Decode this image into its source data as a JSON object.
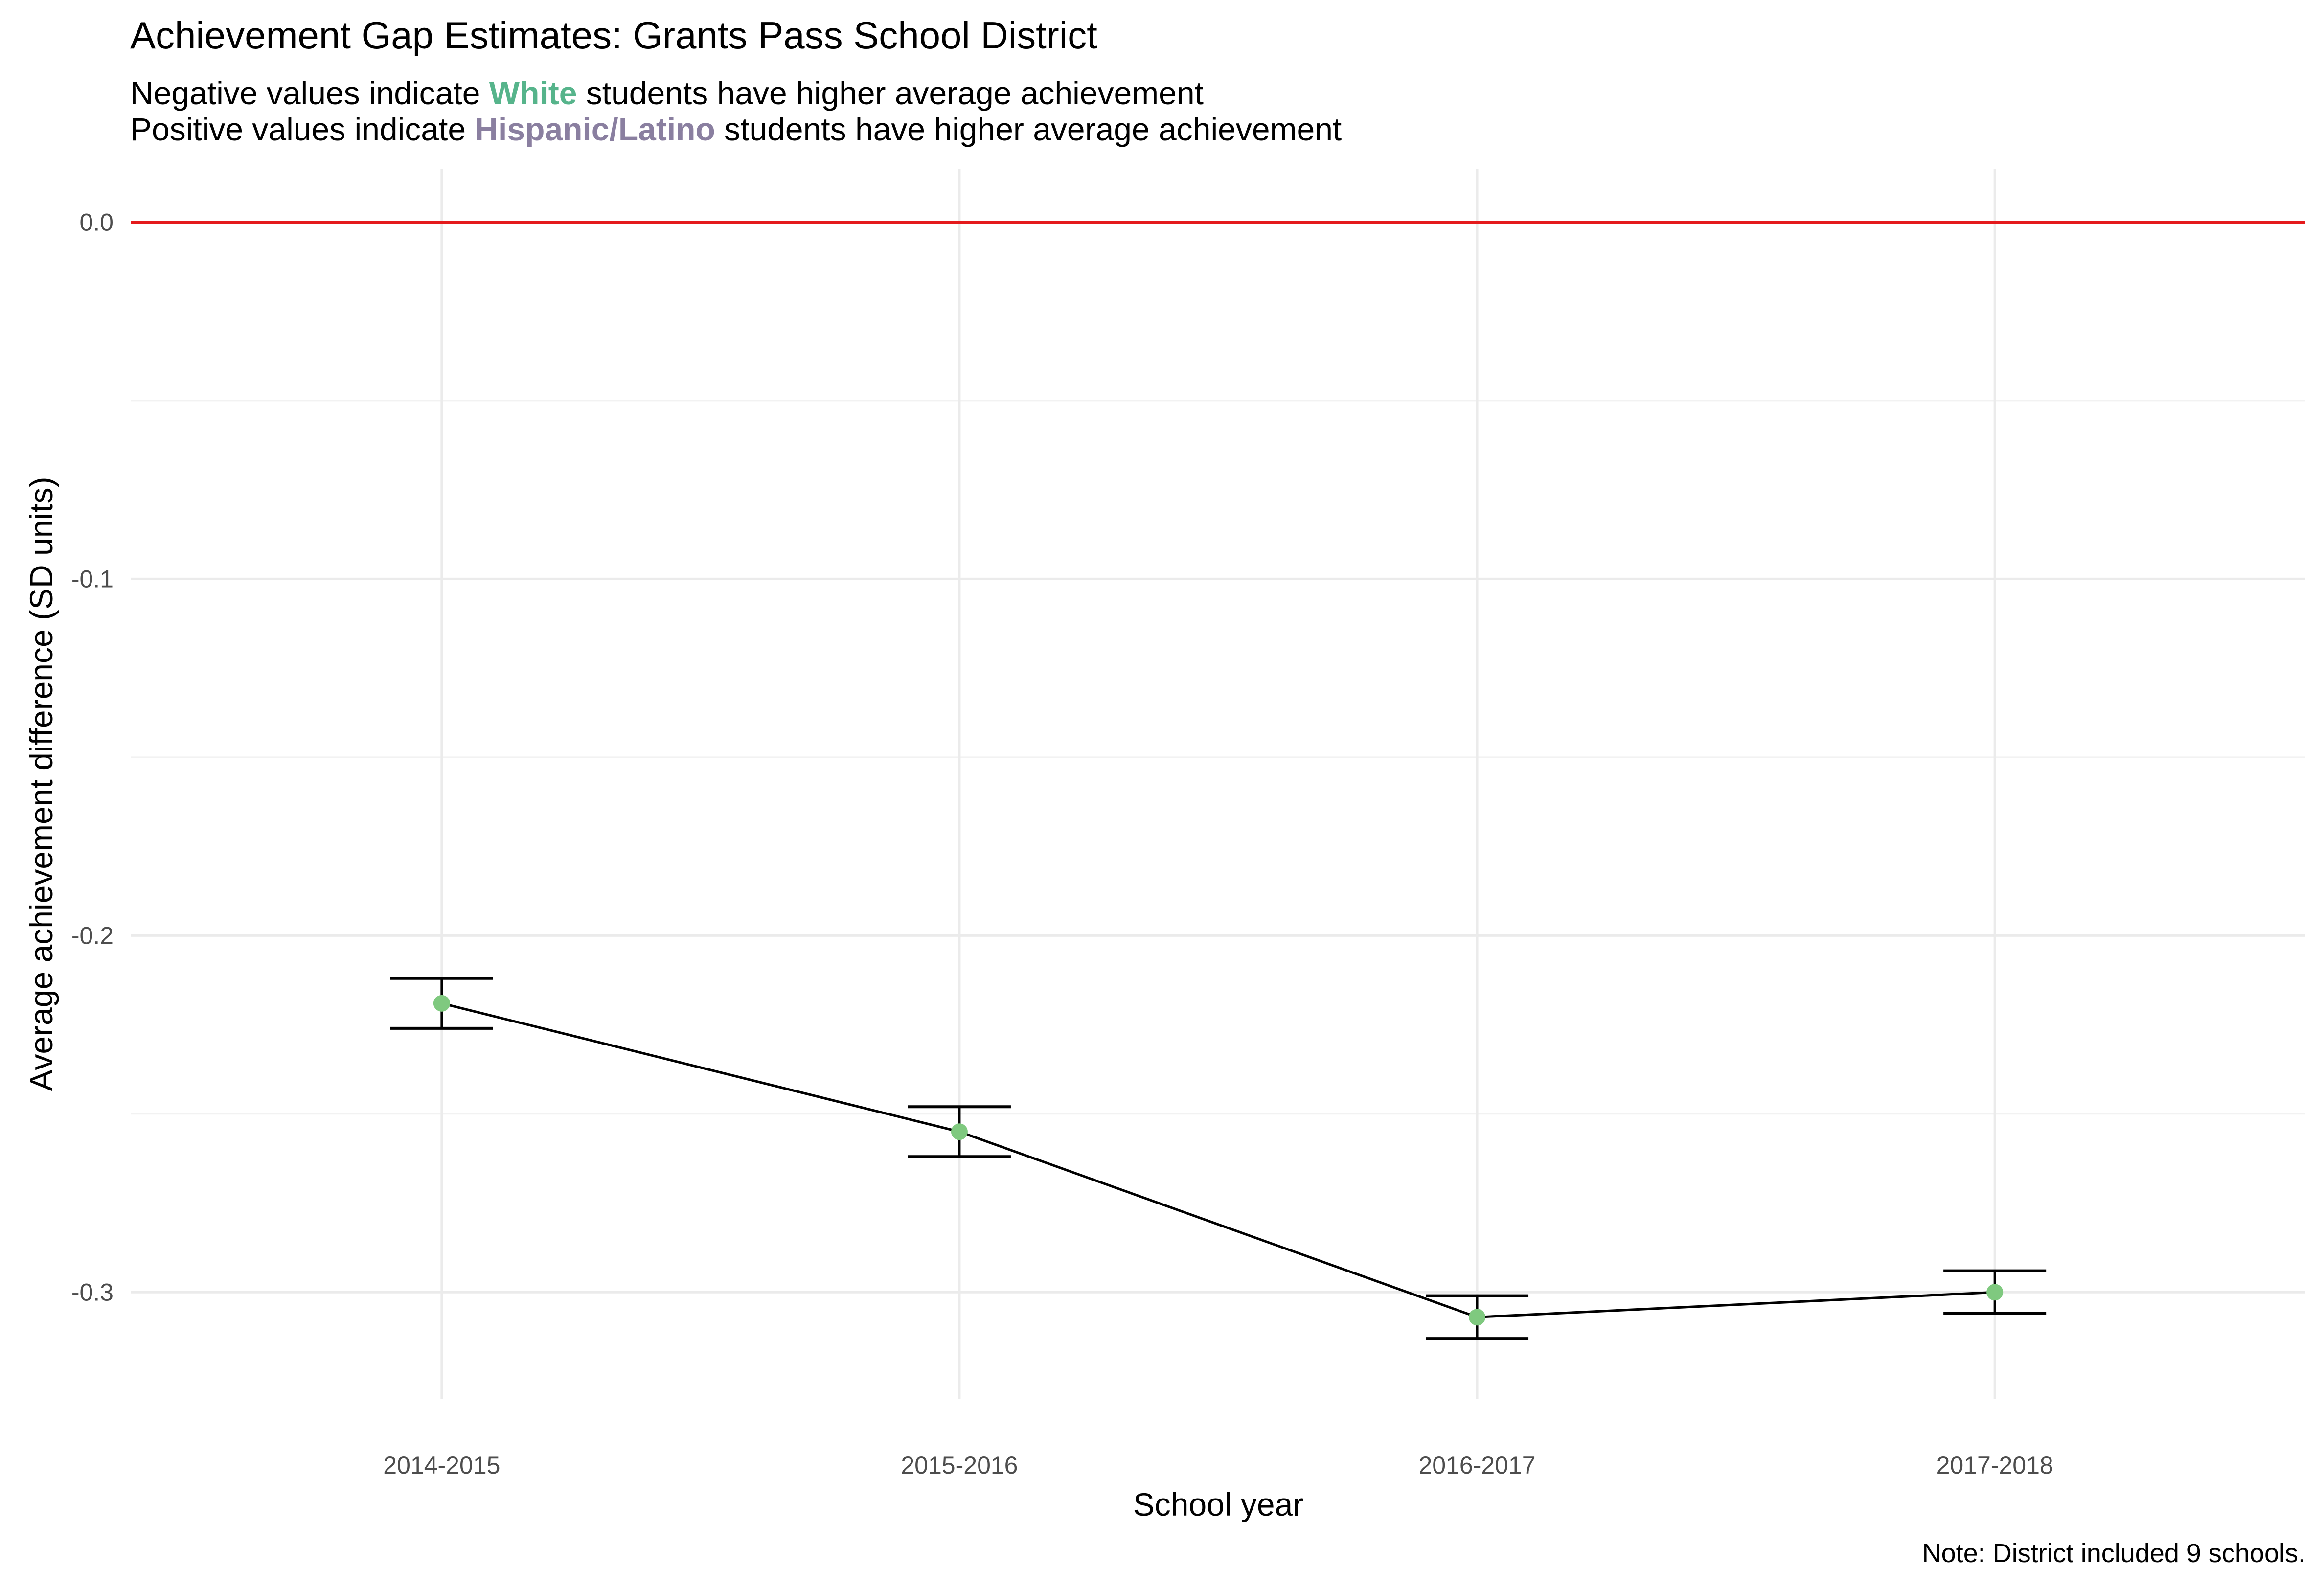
{
  "chart_data": {
    "type": "line",
    "title": "Achievement Gap Estimates: Grants Pass School District",
    "subtitle_line1": {
      "before": "Negative values indicate ",
      "highlight": "White",
      "after": " students have higher average achievement",
      "highlight_color": "#56B48B"
    },
    "subtitle_line2": {
      "before": "Positive values indicate ",
      "highlight": "Hispanic/Latino",
      "after": " students have higher average achievement",
      "highlight_color": "#8A7FA0"
    },
    "xlabel": "School year",
    "ylabel": "Average achievement difference (SD units)",
    "categories": [
      "2014-2015",
      "2015-2016",
      "2016-2017",
      "2017-2018"
    ],
    "values": [
      -0.219,
      -0.255,
      -0.307,
      -0.3
    ],
    "ci_lower": [
      -0.226,
      -0.262,
      -0.313,
      -0.306
    ],
    "ci_upper": [
      -0.212,
      -0.248,
      -0.301,
      -0.294
    ],
    "ylim": [
      -0.33,
      0.015
    ],
    "yticks": [
      0.0,
      -0.1,
      -0.2,
      -0.3
    ],
    "ytick_labels": [
      "0.0",
      "-0.1",
      "-0.2",
      "-0.3"
    ],
    "reference_line": 0.0,
    "reference_line_color": "#E41A1C",
    "point_color": "#7FC97F",
    "line_color": "#000000",
    "grid": true,
    "legend": "none",
    "note": "Note: District included 9 schools."
  }
}
